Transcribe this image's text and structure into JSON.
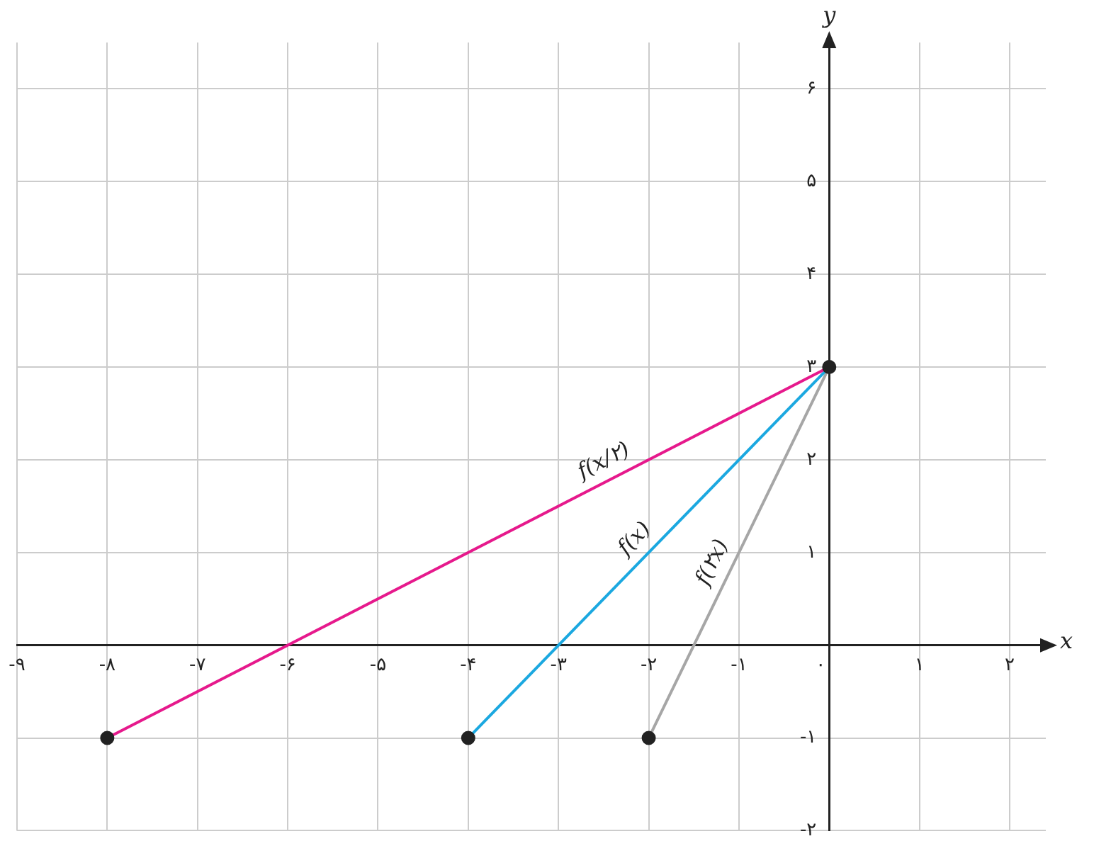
{
  "chart_data": {
    "type": "line",
    "xlabel": "x",
    "ylabel": "y",
    "xlim": [
      -9,
      2.4
    ],
    "ylim": [
      -2,
      6.5
    ],
    "xticks": [
      {
        "value": -9,
        "label": "-۹"
      },
      {
        "value": -8,
        "label": "-۸"
      },
      {
        "value": -7,
        "label": "-۷"
      },
      {
        "value": -6,
        "label": "-۶"
      },
      {
        "value": -5,
        "label": "-۵"
      },
      {
        "value": -4,
        "label": "-۴"
      },
      {
        "value": -3,
        "label": "-۳"
      },
      {
        "value": -2,
        "label": "-۲"
      },
      {
        "value": -1,
        "label": "-۱"
      },
      {
        "value": 0,
        "label": "۰"
      },
      {
        "value": 1,
        "label": "۱"
      },
      {
        "value": 2,
        "label": "۲"
      }
    ],
    "yticks": [
      {
        "value": -2,
        "label": "-۲"
      },
      {
        "value": -1,
        "label": "-۱"
      },
      {
        "value": 1,
        "label": "۱"
      },
      {
        "value": 2,
        "label": "۲"
      },
      {
        "value": 3,
        "label": "۳"
      },
      {
        "value": 4,
        "label": "۴"
      },
      {
        "value": 5,
        "label": "۵"
      },
      {
        "value": 6,
        "label": "۶"
      }
    ],
    "grid": true,
    "legend": false,
    "line_style": "solid",
    "series": [
      {
        "name": "f(x/۲)",
        "color": "#e6198c",
        "x": [
          -8,
          0
        ],
        "values": [
          -1,
          3
        ]
      },
      {
        "name": "f(x)",
        "color": "#1ba8e0",
        "x": [
          -4,
          0
        ],
        "values": [
          -1,
          3
        ]
      },
      {
        "name": "f(۲x)",
        "color": "#a6a6a6",
        "x": [
          -2,
          0
        ],
        "values": [
          -1,
          3
        ]
      },
      {
        "type": "scatter",
        "color": "#222222",
        "marker": "circle",
        "x": [
          -8,
          -4,
          -2,
          0
        ],
        "values": [
          -1,
          -1,
          -1,
          3
        ]
      }
    ]
  }
}
